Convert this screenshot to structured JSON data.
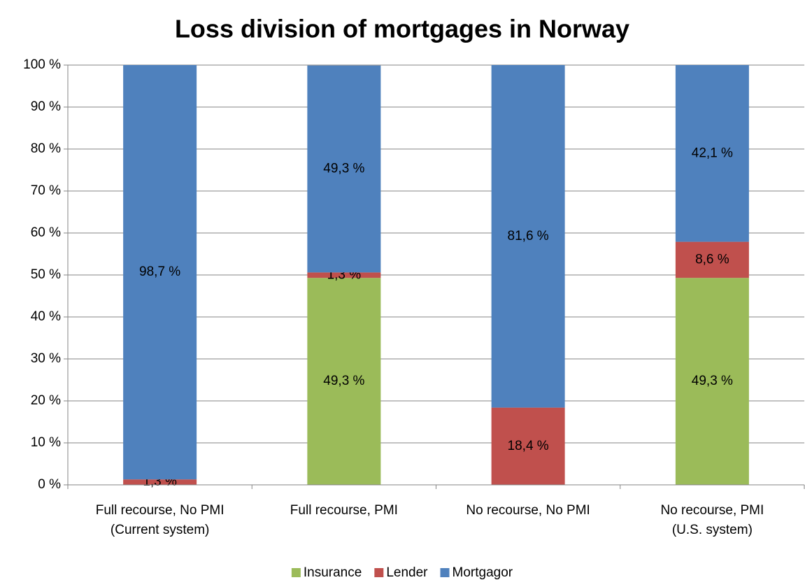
{
  "chart_data": {
    "type": "stacked_bar",
    "title": "Loss division of mortgages in Norway",
    "categories": [
      [
        "Full recourse, No PMI",
        "(Current system)"
      ],
      [
        "Full recourse, PMI"
      ],
      [
        "No recourse, No PMI"
      ],
      [
        "No recourse, PMI",
        "(U.S. system)"
      ]
    ],
    "series": [
      {
        "name": "Insurance",
        "color": "#9bbb59",
        "values": [
          0,
          49.3,
          0,
          49.3
        ],
        "value_labels": [
          null,
          "49,3 %",
          null,
          "49,3 %"
        ]
      },
      {
        "name": "Lender",
        "color": "#c0504d",
        "values": [
          1.3,
          1.3,
          18.4,
          8.6
        ],
        "value_labels": [
          "1,3 %",
          "1,3 %",
          "18,4 %",
          "8,6 %"
        ]
      },
      {
        "name": "Mortgagor",
        "color": "#4f81bd",
        "values": [
          98.7,
          49.3,
          81.6,
          42.1
        ],
        "value_labels": [
          "98,7 %",
          "49,3 %",
          "81,6 %",
          "42,1 %"
        ]
      }
    ],
    "ylim": [
      0,
      100
    ],
    "yticks": [
      {
        "value": 0,
        "label": "0 %"
      },
      {
        "value": 10,
        "label": "10 %"
      },
      {
        "value": 20,
        "label": "20 %"
      },
      {
        "value": 30,
        "label": "30 %"
      },
      {
        "value": 40,
        "label": "40 %"
      },
      {
        "value": 50,
        "label": "50 %"
      },
      {
        "value": 60,
        "label": "60 %"
      },
      {
        "value": 70,
        "label": "70 %"
      },
      {
        "value": 80,
        "label": "80 %"
      },
      {
        "value": 90,
        "label": "90 %"
      },
      {
        "value": 100,
        "label": "100 %"
      }
    ],
    "grid": true,
    "legend": "bottom"
  }
}
